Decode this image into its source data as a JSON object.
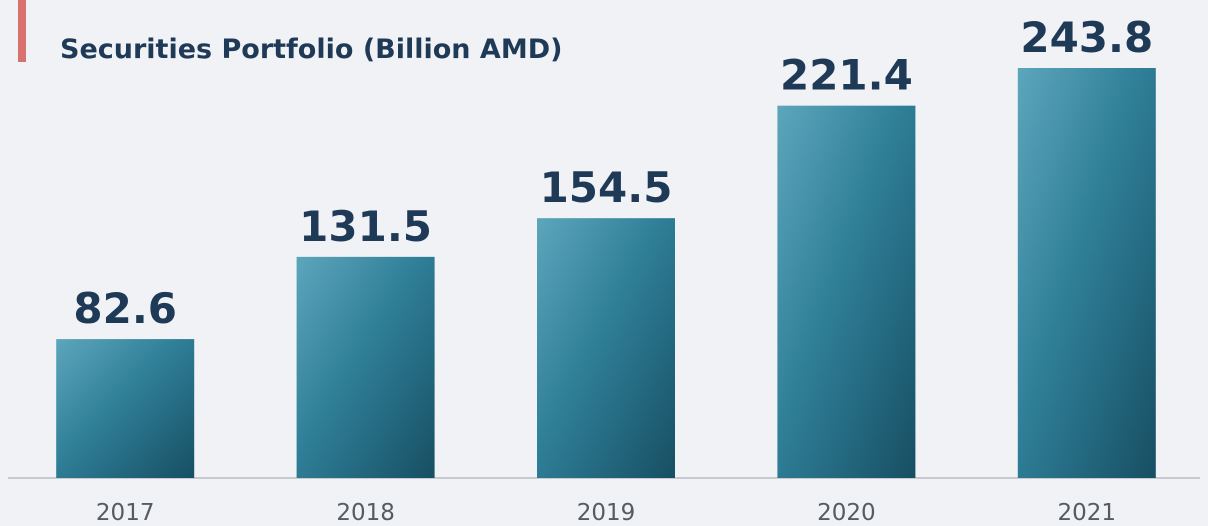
{
  "chart_data": {
    "type": "bar",
    "title": "Securities Portfolio (Billion AMD)",
    "categories": [
      "2017",
      "2018",
      "2019",
      "2020",
      "2021"
    ],
    "values": [
      82.6,
      131.5,
      154.5,
      221.4,
      243.8
    ],
    "color": "#2f7f98"
  }
}
